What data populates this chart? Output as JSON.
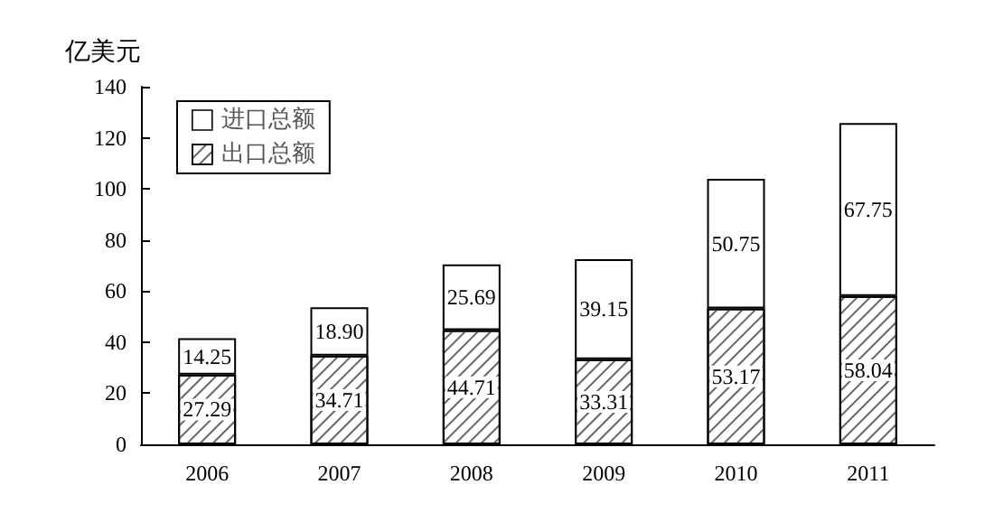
{
  "chart_data": {
    "type": "bar",
    "ylabel": "亿美元",
    "categories": [
      "2006",
      "2007",
      "2008",
      "2009",
      "2010",
      "2011"
    ],
    "stacked": true,
    "legend": "top left",
    "grid": false,
    "ylim": [
      0,
      140
    ],
    "yticks": [
      0,
      20,
      40,
      60,
      80,
      100,
      120,
      140
    ],
    "series": [
      {
        "name": "出口总额",
        "color": "#ffffff",
        "values": [
          27.29,
          34.71,
          44.71,
          33.31,
          53.17,
          58.04
        ],
        "value_labels": [
          "27.29",
          "34.71",
          "44.71",
          "33.31",
          "53.17",
          "58.04"
        ]
      },
      {
        "name": "进口总额",
        "color": "#ffffff",
        "values": [
          14.25,
          18.9,
          25.69,
          39.15,
          50.75,
          67.75
        ],
        "value_labels": [
          "14.25",
          "18.90",
          "25.69",
          "39.15",
          "50.75",
          "67.75"
        ]
      }
    ]
  }
}
